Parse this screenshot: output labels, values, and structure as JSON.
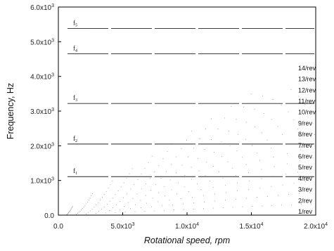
{
  "chart_data": {
    "type": "scatter",
    "xlabel": "Rotational speed, rpm",
    "ylabel": "Frequency, Hz",
    "xlim": [
      0,
      20000
    ],
    "ylim": [
      0,
      6000
    ],
    "x_ticks": [
      {
        "value": 0,
        "mant": "0.0",
        "exp": ""
      },
      {
        "value": 5000,
        "mant": "5.0x10",
        "exp": "3"
      },
      {
        "value": 10000,
        "mant": "1.0x10",
        "exp": "4"
      },
      {
        "value": 15000,
        "mant": "1.5x10",
        "exp": "4"
      },
      {
        "value": 20000,
        "mant": "2.0x10",
        "exp": "4"
      }
    ],
    "y_ticks": [
      {
        "value": 0,
        "mant": "0.0",
        "exp": ""
      },
      {
        "value": 1000,
        "mant": "1.0x10",
        "exp": "3"
      },
      {
        "value": 2000,
        "mant": "2.0x10",
        "exp": "3"
      },
      {
        "value": 3000,
        "mant": "3.0x10",
        "exp": "3"
      },
      {
        "value": 4000,
        "mant": "4.0x10",
        "exp": "3"
      },
      {
        "value": 5000,
        "mant": "5.0x10",
        "exp": "3"
      },
      {
        "value": 6000,
        "mant": "6.0x10",
        "exp": "3"
      }
    ],
    "natural_frequencies": [
      {
        "label": "f",
        "sub": "1",
        "value": 1110
      },
      {
        "label": "f",
        "sub": "2",
        "value": 2050
      },
      {
        "label": "f",
        "sub": "3",
        "value": 3220
      },
      {
        "label": "f",
        "sub": "4",
        "value": 4650
      },
      {
        "label": "f",
        "sub": "5",
        "value": 5380
      }
    ],
    "engine_orders": [
      "1/rev",
      "2/rev",
      "3/rev",
      "4/rev",
      "5/rev",
      "6/rev",
      "7/rev",
      "8/rev",
      "9/rev",
      "10/rev",
      "11/rev",
      "12/rev",
      "13/rev",
      "14/rev"
    ],
    "grid": false,
    "legend": "none",
    "colors": {
      "lines": "#222222",
      "points": "#777777",
      "axes": "#000000"
    }
  }
}
